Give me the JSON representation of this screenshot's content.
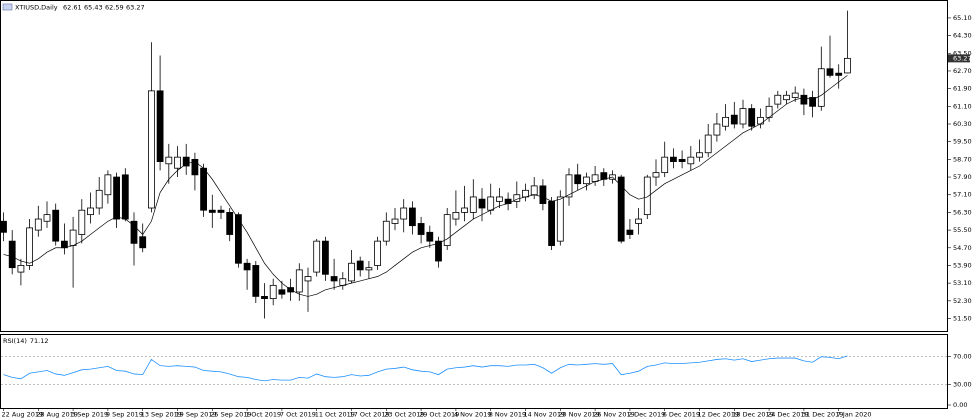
{
  "chart_data": [
    {
      "type": "candlestick",
      "title": "XTIUSD,Daily",
      "categories": [
        "22 Aug 2019",
        null,
        null,
        null,
        "28 Aug 2019",
        null,
        null,
        null,
        "3 Sep 2019",
        null,
        null,
        null,
        "9 Sep 2019",
        null,
        null,
        null,
        "13 Sep 2019",
        null,
        null,
        null,
        "19 Sep 2019",
        null,
        null,
        null,
        "25 Sep 2019",
        null,
        null,
        null,
        "1 Oct 2019",
        null,
        null,
        null,
        "7 Oct 2019",
        null,
        null,
        null,
        "11 Oct 2019",
        null,
        null,
        null,
        "17 Oct 2019",
        null,
        null,
        null,
        "23 Oct 2019",
        null,
        null,
        null,
        "29 Oct 2019",
        null,
        null,
        null,
        "4 Nov 2019",
        null,
        null,
        null,
        "8 Nov 2019",
        null,
        null,
        null,
        "14 Nov 2019",
        null,
        null,
        null,
        "20 Nov 2019",
        null,
        null,
        null,
        "26 Nov 2019",
        null,
        null,
        null,
        "2 Dec 2019",
        null,
        null,
        null,
        "6 Dec 2019",
        null,
        null,
        null,
        "12 Dec 2019",
        null,
        null,
        null,
        "18 Dec 2019",
        null,
        null,
        null,
        "24 Dec 2019",
        null,
        null,
        null,
        "31 Dec 2019",
        null,
        null,
        null,
        "7 Jan 2020",
        null
      ],
      "open": [
        55.9,
        55.0,
        53.6,
        53.9,
        55.5,
        55.9,
        56.4,
        55.0,
        54.8,
        55.3,
        56.2,
        56.5,
        57.1,
        57.9,
        58.0,
        55.9,
        55.2,
        56.5,
        61.8,
        58.5,
        58.3,
        58.8,
        58.7,
        58.3,
        56.4,
        56.4,
        56.3,
        56.2,
        54.0,
        53.9,
        52.5,
        52.4,
        52.8,
        52.9,
        52.7,
        53.2,
        53.6,
        55.0,
        53.4,
        53.0,
        53.2,
        54.1,
        53.7,
        53.9,
        55.0,
        55.8,
        56.0,
        56.5,
        55.8,
        55.4,
        55.0,
        54.8,
        56.0,
        56.3,
        56.3,
        56.9,
        56.4,
        56.8,
        56.9,
        56.8,
        57.0,
        57.1,
        57.5,
        56.8,
        55.0,
        57.0,
        58.0,
        57.6,
        57.7,
        58.1,
        57.8,
        57.9,
        55.5,
        55.8,
        56.2,
        57.9,
        58.1,
        58.8,
        58.7,
        58.5,
        58.8,
        59.0,
        59.8,
        60.2,
        60.7,
        60.3,
        61.0,
        60.3,
        60.6,
        61.2,
        61.4,
        61.5,
        61.6,
        61.5,
        61.1,
        62.8,
        62.6,
        62.61
      ],
      "high": [
        56.3,
        55.5,
        54.2,
        56.0,
        56.6,
        56.8,
        56.7,
        55.8,
        56.1,
        56.9,
        57.2,
        57.9,
        58.2,
        58.1,
        58.3,
        56.3,
        55.8,
        64.0,
        63.4,
        59.4,
        59.3,
        59.4,
        59.0,
        58.5,
        57.1,
        56.6,
        56.5,
        56.3,
        54.2,
        54.1,
        53.1,
        53.3,
        53.2,
        53.3,
        54.0,
        53.8,
        55.1,
        55.2,
        54.2,
        53.6,
        54.6,
        54.3,
        54.1,
        55.2,
        56.3,
        56.5,
        56.9,
        56.8,
        56.1,
        55.7,
        55.2,
        56.5,
        57.3,
        57.5,
        57.8,
        57.4,
        57.6,
        57.4,
        57.2,
        57.7,
        57.6,
        57.9,
        57.8,
        57.0,
        57.3,
        58.3,
        58.5,
        58.1,
        58.4,
        58.3,
        58.2,
        58.0,
        56.0,
        56.5,
        58.0,
        58.7,
        59.5,
        59.2,
        59.1,
        59.3,
        59.6,
        60.3,
        60.8,
        61.2,
        61.3,
        61.4,
        61.2,
        61.0,
        61.5,
        61.8,
        61.8,
        62.0,
        61.9,
        61.8,
        63.8,
        64.3,
        63.0,
        65.43
      ],
      "low": [
        55.0,
        53.5,
        53.0,
        53.7,
        55.2,
        55.6,
        54.8,
        54.4,
        52.9,
        54.9,
        55.8,
        56.2,
        56.7,
        55.6,
        55.9,
        53.9,
        54.5,
        56.3,
        58.2,
        57.6,
        57.9,
        58.0,
        57.3,
        56.1,
        55.6,
        56.0,
        55.0,
        53.8,
        52.8,
        52.2,
        51.5,
        52.1,
        52.4,
        52.3,
        52.3,
        51.8,
        53.4,
        53.2,
        52.8,
        52.8,
        53.1,
        53.4,
        53.3,
        53.7,
        54.8,
        55.5,
        55.4,
        55.3,
        54.9,
        54.7,
        53.8,
        54.6,
        55.7,
        55.9,
        56.0,
        55.9,
        56.2,
        56.5,
        56.4,
        56.5,
        56.8,
        56.9,
        56.4,
        54.6,
        54.8,
        56.6,
        57.3,
        57.3,
        57.5,
        57.5,
        57.6,
        54.9,
        55.1,
        55.3,
        56.0,
        57.5,
        57.9,
        58.3,
        58.3,
        58.2,
        58.6,
        58.8,
        59.5,
        60.0,
        60.1,
        60.1,
        60.0,
        60.1,
        60.4,
        61.0,
        61.2,
        61.3,
        60.7,
        60.6,
        60.9,
        62.4,
        61.9,
        62.59
      ],
      "close": [
        55.4,
        53.8,
        53.9,
        55.6,
        56.0,
        56.2,
        55.0,
        54.7,
        55.5,
        56.4,
        56.5,
        57.3,
        58.0,
        56.0,
        56.0,
        54.9,
        54.7,
        61.8,
        58.6,
        58.8,
        58.8,
        58.4,
        58.0,
        56.4,
        56.3,
        56.3,
        55.3,
        54.0,
        53.7,
        52.5,
        52.4,
        53.0,
        52.6,
        52.7,
        53.7,
        53.4,
        55.0,
        53.5,
        53.2,
        53.3,
        54.0,
        53.7,
        53.8,
        55.0,
        55.9,
        56.0,
        56.5,
        55.7,
        55.3,
        55.0,
        54.1,
        56.2,
        56.3,
        56.5,
        57.0,
        56.5,
        57.0,
        57.0,
        56.7,
        57.1,
        57.3,
        57.5,
        56.7,
        54.8,
        57.0,
        58.0,
        57.6,
        57.9,
        58.0,
        57.8,
        58.0,
        55.0,
        55.3,
        56.0,
        57.9,
        58.1,
        58.8,
        58.6,
        58.6,
        58.8,
        59.0,
        59.8,
        60.3,
        60.6,
        60.3,
        61.0,
        60.2,
        60.6,
        61.1,
        61.6,
        61.6,
        61.7,
        61.2,
        61.1,
        62.8,
        62.5,
        62.5,
        63.27
      ],
      "up_color": "#ffffff",
      "down_color": "#000000",
      "series": [
        {
          "color": "#000000",
          "values": [
            54.4,
            54.3,
            54.1,
            54.0,
            54.2,
            54.5,
            54.7,
            54.7,
            54.8,
            55.0,
            55.3,
            55.6,
            55.9,
            56.1,
            56.0,
            55.7,
            55.3,
            55.9,
            57.2,
            57.8,
            58.2,
            58.5,
            58.6,
            58.3,
            57.8,
            57.2,
            56.6,
            56.0,
            55.4,
            54.7,
            54.0,
            53.5,
            53.1,
            52.8,
            52.6,
            52.5,
            52.6,
            52.8,
            52.9,
            53.0,
            53.1,
            53.2,
            53.3,
            53.4,
            53.6,
            53.9,
            54.2,
            54.5,
            54.7,
            54.8,
            54.9,
            55.1,
            55.4,
            55.7,
            56.0,
            56.2,
            56.4,
            56.6,
            56.7,
            56.9,
            57.0,
            57.1,
            57.0,
            56.8,
            56.9,
            57.1,
            57.3,
            57.5,
            57.7,
            57.8,
            57.9,
            57.5,
            57.1,
            56.9,
            57.0,
            57.3,
            57.6,
            57.8,
            58.0,
            58.2,
            58.4,
            58.7,
            59.0,
            59.3,
            59.6,
            59.9,
            60.1,
            60.3,
            60.6,
            60.9,
            61.2,
            61.4,
            61.5,
            61.4,
            61.6,
            61.9,
            62.2,
            62.5
          ]
        }
      ],
      "ylim": [
        50.98,
        65.82
      ],
      "yticks": [
        {
          "value": 65.1,
          "label": "65.10"
        },
        {
          "value": 64.3,
          "label": "64.30"
        },
        {
          "value": 63.5,
          "label": "63.50"
        },
        {
          "value": 62.7,
          "label": "62.70"
        },
        {
          "value": 61.9,
          "label": "61.90"
        },
        {
          "value": 61.1,
          "label": "61.10"
        },
        {
          "value": 60.3,
          "label": "60.30"
        },
        {
          "value": 59.5,
          "label": "59.50"
        },
        {
          "value": 58.7,
          "label": "58.70"
        },
        {
          "value": 57.9,
          "label": "57.90"
        },
        {
          "value": 57.1,
          "label": "57.10"
        },
        {
          "value": 56.3,
          "label": "56.30"
        },
        {
          "value": 55.5,
          "label": "55.50"
        },
        {
          "value": 54.7,
          "label": "54.70"
        },
        {
          "value": 53.9,
          "label": "53.90"
        },
        {
          "value": 53.1,
          "label": "53.10"
        },
        {
          "value": 52.3,
          "label": "52.30"
        },
        {
          "value": 51.5,
          "label": "51.50"
        }
      ]
    },
    {
      "type": "line",
      "title": "RSI(14)",
      "series": [
        {
          "color": "#1e90ff",
          "values": [
            44,
            40,
            38,
            46,
            48,
            50,
            45,
            43,
            47,
            51,
            52,
            54,
            56,
            50,
            49,
            45,
            44,
            66,
            57,
            56,
            57,
            56,
            55,
            50,
            49,
            48,
            45,
            41,
            40,
            37,
            35,
            37,
            36,
            36,
            40,
            39,
            45,
            41,
            40,
            41,
            44,
            42,
            43,
            48,
            52,
            53,
            55,
            51,
            49,
            48,
            44,
            52,
            54,
            55,
            57,
            55,
            57,
            57,
            56,
            58,
            58,
            59,
            54,
            46,
            54,
            59,
            58,
            59,
            60,
            59,
            60,
            44,
            46,
            49,
            56,
            58,
            61,
            60,
            60,
            61,
            62,
            64,
            66,
            67,
            65,
            67,
            63,
            65,
            67,
            68,
            68,
            68,
            64,
            62,
            70,
            69,
            67,
            71.12
          ]
        }
      ],
      "ylim": [
        0,
        100
      ],
      "yticks": [
        {
          "value": 70,
          "label": "70.00"
        },
        {
          "value": 30,
          "label": "30.00"
        },
        {
          "value": 0,
          "label": "0.00"
        }
      ],
      "levels": [
        70,
        30
      ]
    }
  ]
}
